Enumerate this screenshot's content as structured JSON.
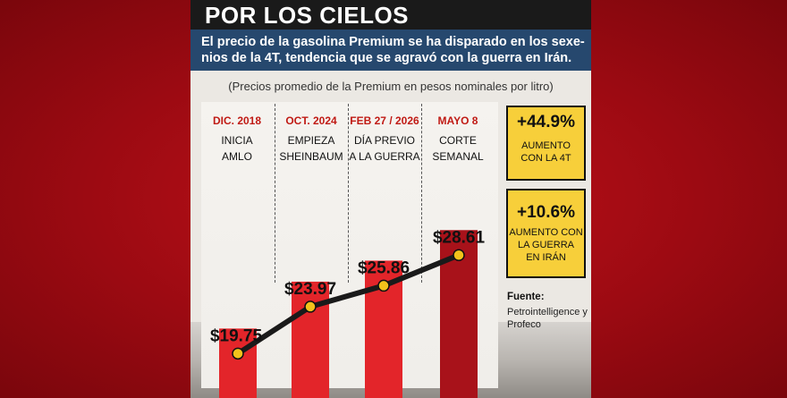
{
  "title": "POR LOS CIELOS",
  "subtitle": "El precio de la gasolina Premium se ha disparado en los sexe-nios de la 4T, tendencia que se agravó con la guerra en Irán.",
  "note": "(Precios promedio de la Premium en pesos nominales por litro)",
  "chart_data": {
    "type": "bar",
    "categories": [
      "DIC. 2018",
      "OCT. 2024",
      "FEB 27 / 2026",
      "MAYO 8"
    ],
    "category_labels": [
      "INICIA\nAMLO",
      "EMPIEZA\nSHEINBAUM",
      "DÍA PREVIO\nA LA GUERRA",
      "CORTE\nSEMANAL"
    ],
    "values": [
      19.75,
      23.97,
      25.86,
      28.61
    ],
    "value_labels": [
      "$19.75",
      "$23.97",
      "$25.86",
      "$28.61"
    ],
    "bar_colors": [
      "#e3252a",
      "#e3252a",
      "#e3252a",
      "#a8121a"
    ],
    "line_color": "#1a1a1a",
    "marker_color": "#f2c21b",
    "ylim": [
      13.5,
      30
    ]
  },
  "boxes": [
    {
      "pct": "+44.9%",
      "text": "AUMENTO\nCON LA 4T"
    },
    {
      "pct": "+10.6%",
      "text": "AUMENTO CON\nLA GUERRA\nEN IRÁN"
    }
  ],
  "source": {
    "title": "Fuente:",
    "text": "Petrointelligence y Profeco"
  }
}
